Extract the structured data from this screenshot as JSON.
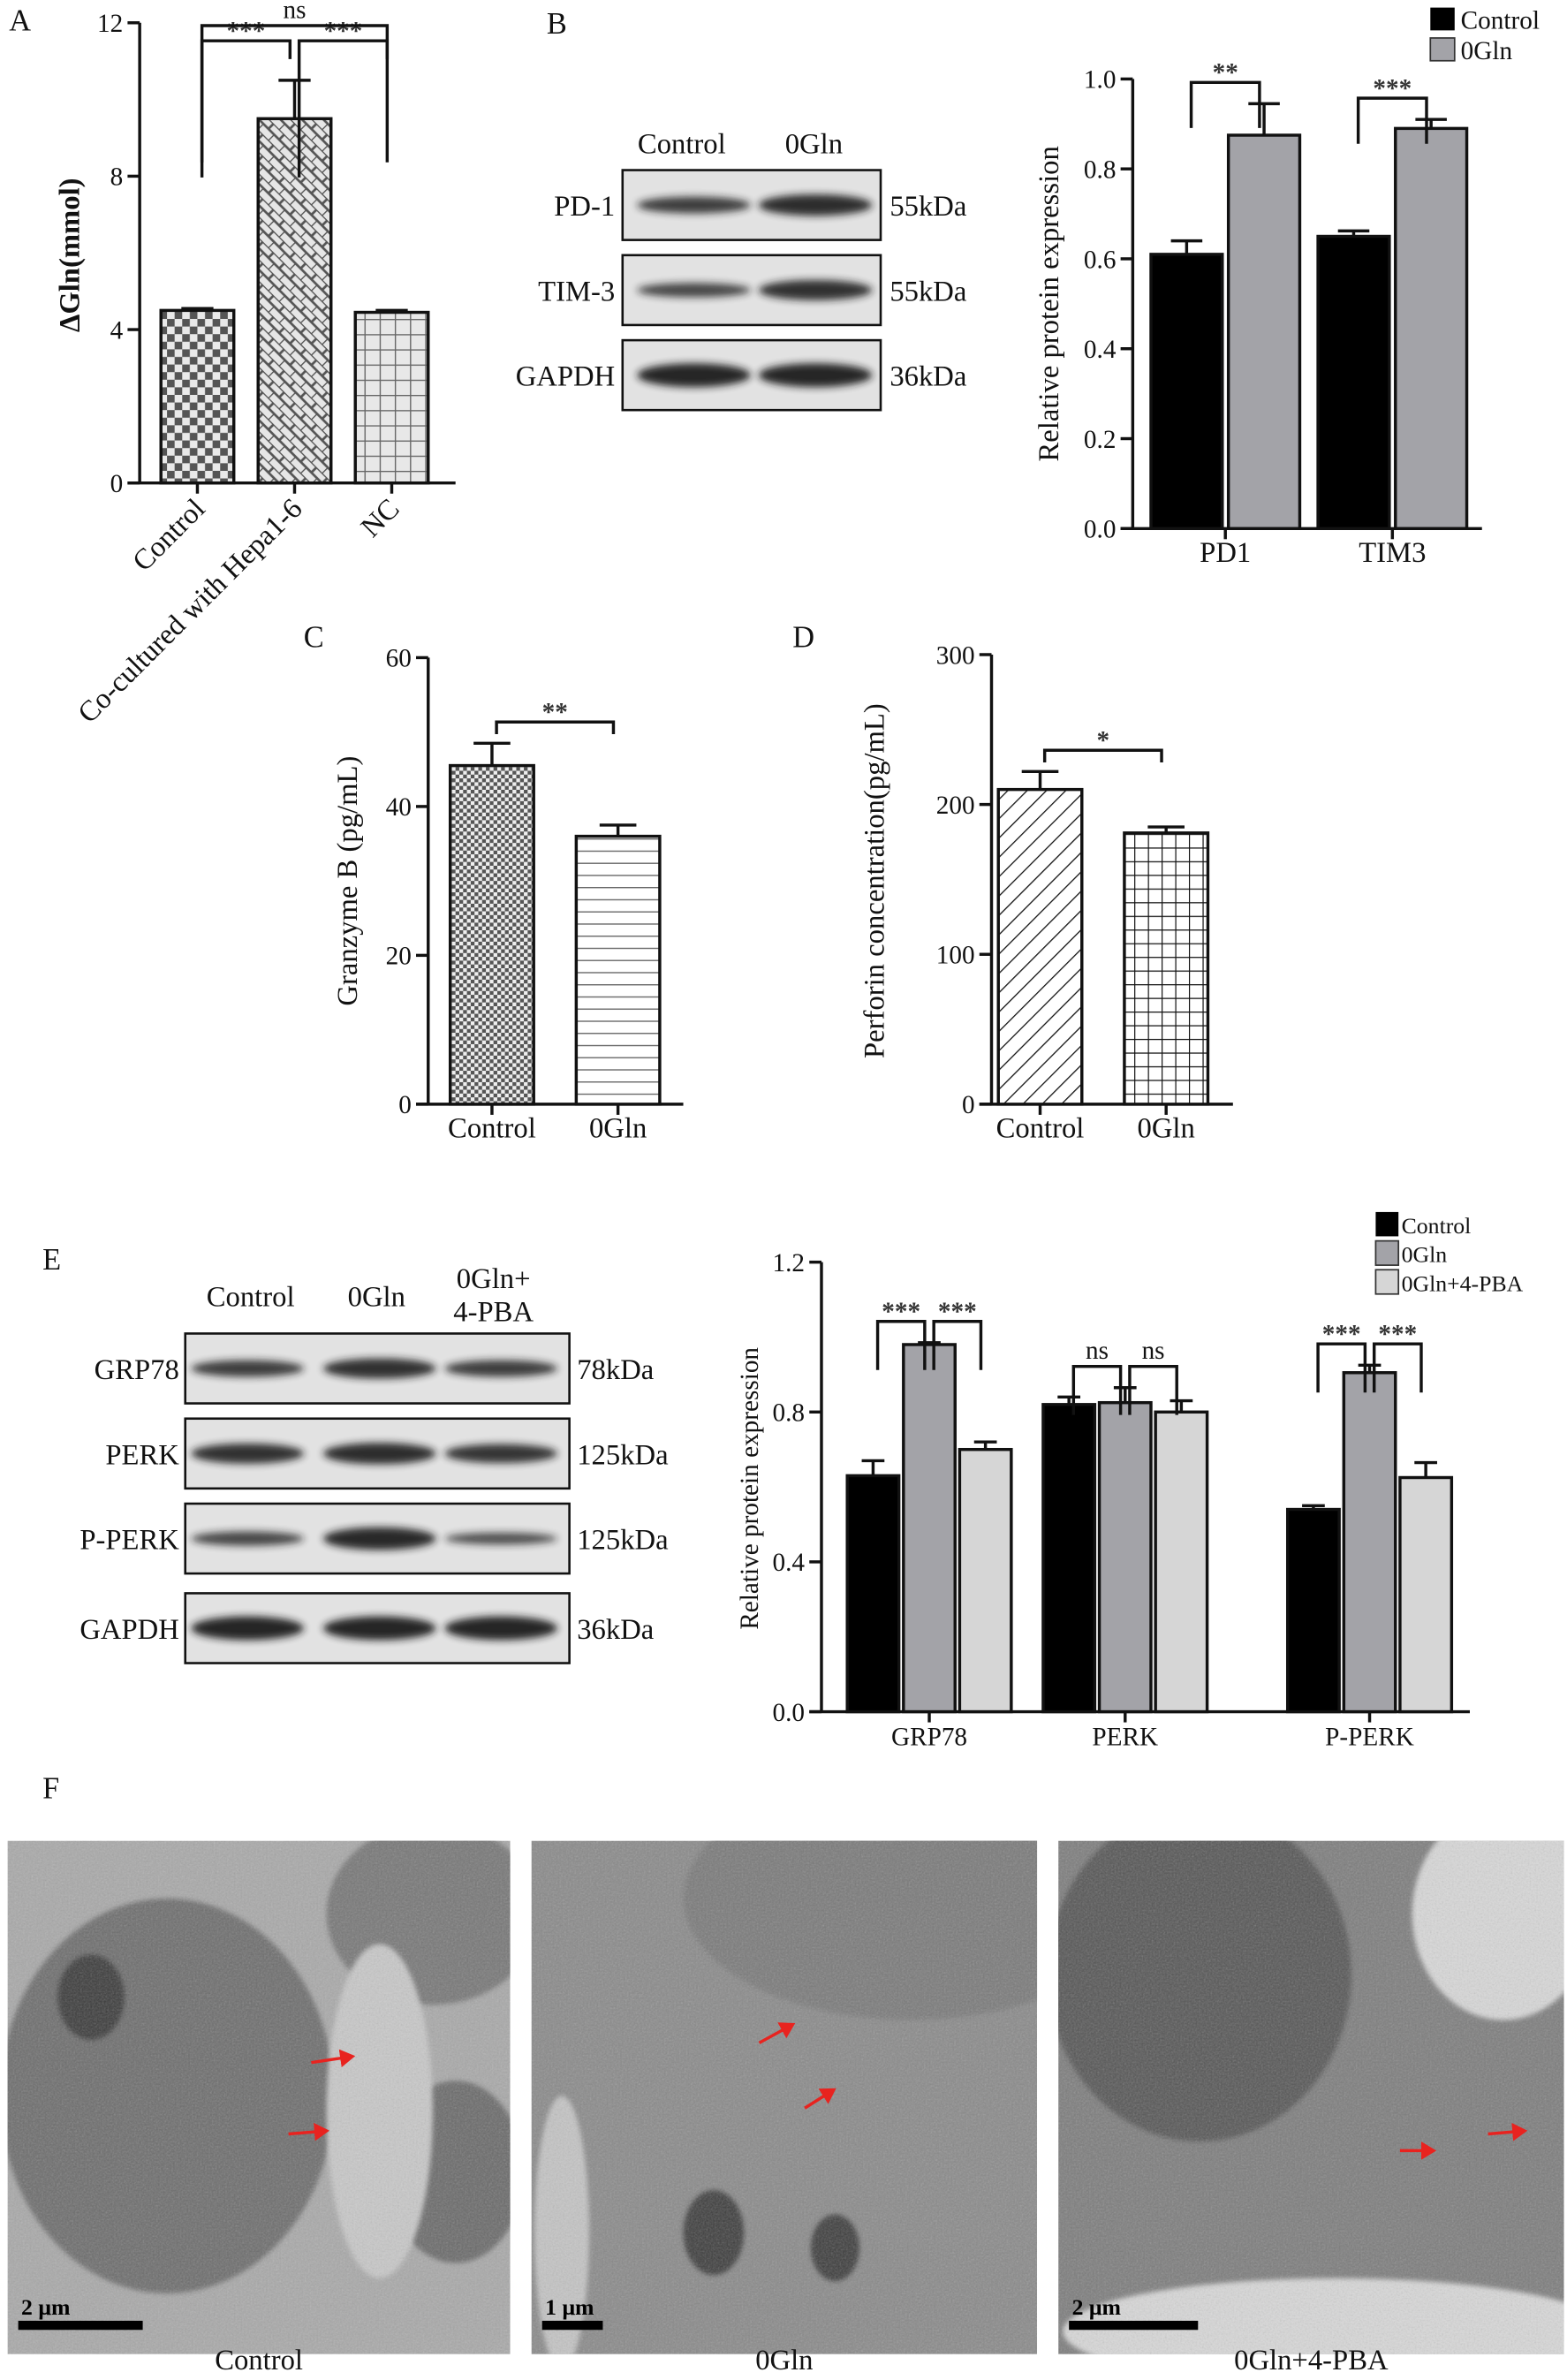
{
  "panels": {
    "A": "A",
    "B": "B",
    "C": "C",
    "D": "D",
    "E": "E",
    "F": "F"
  },
  "blot_B": {
    "lanes": [
      "Control",
      "0Gln"
    ],
    "rows": [
      {
        "name": "PD-1",
        "kda": "55kDa"
      },
      {
        "name": "TIM-3",
        "kda": "55kDa"
      },
      {
        "name": "GAPDH",
        "kda": "36kDa"
      }
    ]
  },
  "blot_E": {
    "lanes": [
      "Control",
      "0Gln",
      "0Gln+",
      "4-PBA"
    ],
    "rows": [
      {
        "name": "GRP78",
        "kda": "78kDa"
      },
      {
        "name": "PERK",
        "kda": "125kDa"
      },
      {
        "name": "P-PERK",
        "kda": "125kDa"
      },
      {
        "name": "GAPDH",
        "kda": "36kDa"
      }
    ]
  },
  "tem_F": {
    "images": [
      {
        "caption": "Control",
        "scale_bar": "2 μm"
      },
      {
        "caption": "0Gln",
        "scale_bar": "1 μm"
      },
      {
        "caption": "0Gln+4-PBA",
        "scale_bar": "2 μm"
      }
    ],
    "arrow_color": "#e8231f"
  },
  "chart_data": [
    {
      "type": "bar",
      "panel": "A",
      "categories": [
        "Control",
        "Co-cultured with Hepa1-6",
        "NC"
      ],
      "values": [
        4.5,
        9.5,
        4.45
      ],
      "errors": [
        0.05,
        1.0,
        0.05
      ],
      "fill_patterns": [
        "checkerboard",
        "brick",
        "grid"
      ],
      "ylabel": "ΔGln(mmol)",
      "xlabel": "",
      "ylim": [
        0,
        12
      ],
      "yticks": [
        "0",
        "4",
        "8",
        "12"
      ],
      "brackets": [
        {
          "a": 0,
          "b": 1,
          "label": "***",
          "level": 0
        },
        {
          "a": 1,
          "b": 2,
          "label": "***",
          "level": 0
        },
        {
          "a": 0,
          "b": 2,
          "label": "ns",
          "level": 1
        }
      ]
    },
    {
      "type": "bar",
      "panel": "B",
      "categories": [
        "PD1",
        "TIM3"
      ],
      "series": [
        {
          "name": "Control",
          "color": "#000000",
          "values": [
            0.61,
            0.65
          ],
          "errors": [
            0.03,
            0.012
          ]
        },
        {
          "name": "0Gln",
          "color": "#a3a3a8",
          "values": [
            0.875,
            0.89
          ],
          "errors": [
            0.07,
            0.02
          ]
        }
      ],
      "ylabel": "Relative protein expression",
      "xlabel": "",
      "ylim": [
        0,
        1.0
      ],
      "yticks": [
        "0.0",
        "0.2",
        "0.4",
        "0.6",
        "0.8",
        "1.0"
      ],
      "legend": "top-right",
      "brackets": [
        {
          "group": 0,
          "a": 0,
          "b": 1,
          "label": "**",
          "level": 0
        },
        {
          "group": 1,
          "a": 0,
          "b": 1,
          "label": "***",
          "level": 0
        }
      ]
    },
    {
      "type": "bar",
      "panel": "C",
      "categories": [
        "Control",
        "0Gln"
      ],
      "values": [
        45.5,
        36
      ],
      "errors": [
        3,
        1.5
      ],
      "fill_patterns": [
        "fine-checkerboard",
        "horizontal-lines"
      ],
      "ylabel": "Granzyme B (pg/mL)",
      "xlabel": "",
      "ylim": [
        0,
        60
      ],
      "yticks": [
        "0",
        "20",
        "40",
        "60"
      ],
      "brackets": [
        {
          "a": 0,
          "b": 1,
          "label": "**",
          "level": 0
        }
      ]
    },
    {
      "type": "bar",
      "panel": "D",
      "categories": [
        "Control",
        "0Gln"
      ],
      "values": [
        210,
        181
      ],
      "errors": [
        12,
        4
      ],
      "fill_patterns": [
        "diagonal-lines",
        "square-grid"
      ],
      "ylabel": "Perforin concentration(pg/mL)",
      "xlabel": "",
      "ylim": [
        0,
        300
      ],
      "yticks": [
        "0",
        "100",
        "200",
        "300"
      ],
      "brackets": [
        {
          "a": 0,
          "b": 1,
          "label": "*",
          "level": 0
        }
      ]
    },
    {
      "type": "bar",
      "panel": "E",
      "categories": [
        "GRP78",
        "PERK",
        "P-PERK"
      ],
      "series": [
        {
          "name": "Control",
          "color": "#000000",
          "values": [
            0.63,
            0.82,
            0.54
          ],
          "errors": [
            0.04,
            0.02,
            0.01
          ]
        },
        {
          "name": "0Gln",
          "color": "#a3a3a8",
          "values": [
            0.98,
            0.825,
            0.905
          ],
          "errors": [
            0.005,
            0.04,
            0.02
          ]
        },
        {
          "name": "0Gln+4-PBA",
          "color": "#d6d6d6",
          "values": [
            0.7,
            0.8,
            0.625
          ],
          "errors": [
            0.02,
            0.03,
            0.04
          ]
        }
      ],
      "ylabel": "Relative protein expression",
      "xlabel": "",
      "ylim": [
        0,
        1.2
      ],
      "yticks": [
        "0.0",
        "0.4",
        "0.8",
        "1.2"
      ],
      "legend": "top-right",
      "brackets": [
        {
          "group": 0,
          "a": 0,
          "b": 1,
          "label": "***",
          "level": 0
        },
        {
          "group": 0,
          "a": 1,
          "b": 2,
          "label": "***",
          "level": 0
        },
        {
          "group": 1,
          "a": 0,
          "b": 1,
          "label": "ns",
          "level": 0
        },
        {
          "group": 1,
          "a": 1,
          "b": 2,
          "label": "ns",
          "level": 0
        },
        {
          "group": 2,
          "a": 0,
          "b": 1,
          "label": "***",
          "level": 0
        },
        {
          "group": 2,
          "a": 1,
          "b": 2,
          "label": "***",
          "level": 0
        }
      ]
    }
  ]
}
